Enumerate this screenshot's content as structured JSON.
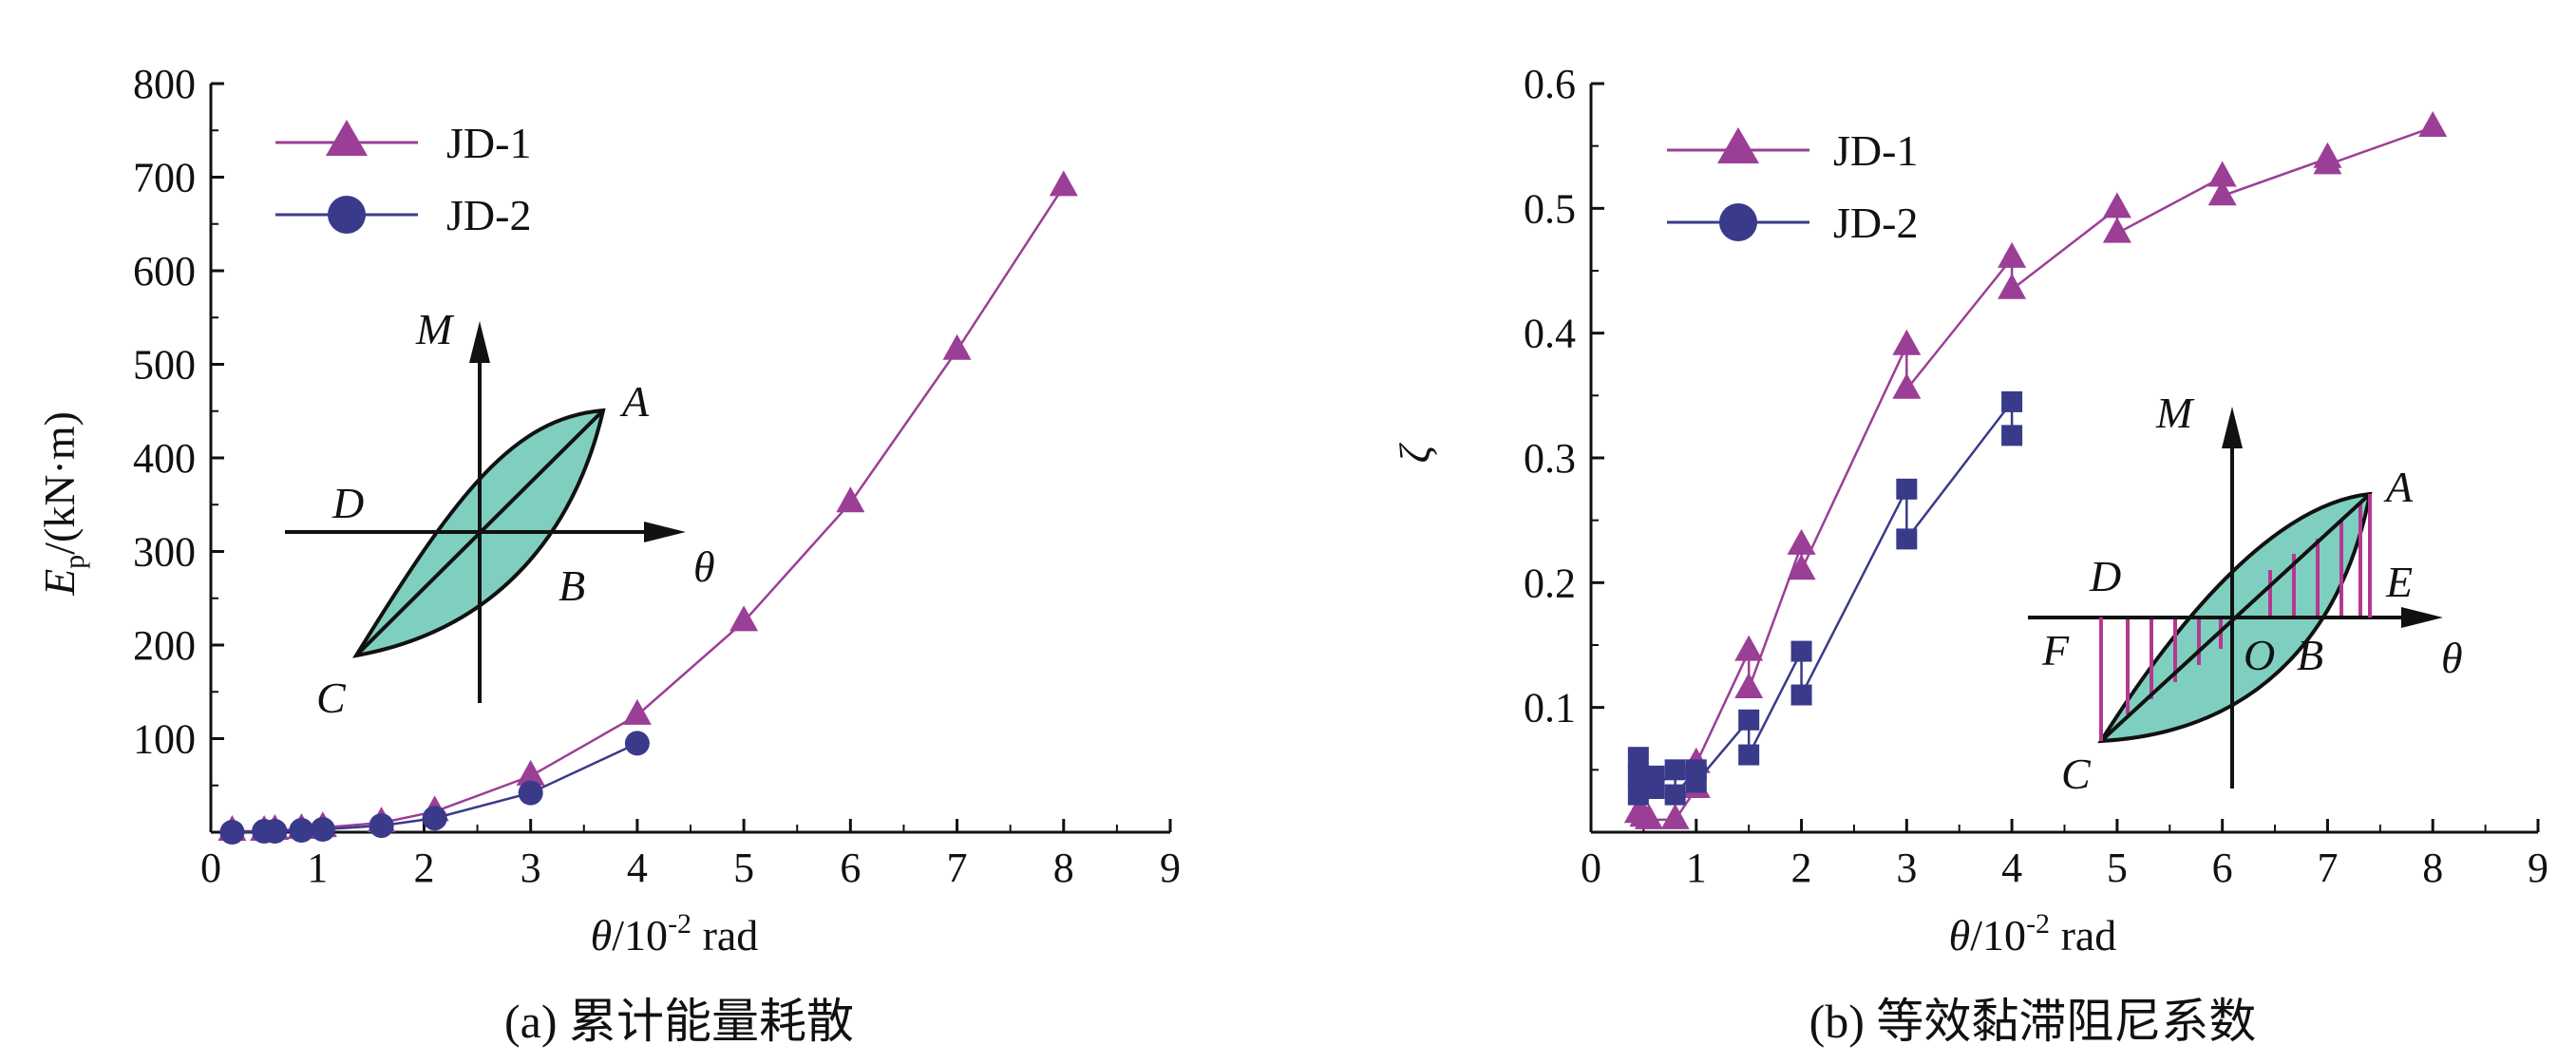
{
  "colors": {
    "jd1": "#9b3e96",
    "jd2": "#3a3a8a",
    "loop_fill": "#7ecfc0",
    "hatch": "#b5388f"
  },
  "chart_data": [
    {
      "type": "line",
      "caption": "(a) 累计能量耗散",
      "xlabel": {
        "sym": "θ",
        "rest": "/10",
        "sup": "-2",
        "unit": " rad"
      },
      "ylabel": {
        "sym": "E",
        "sub": "p",
        "rest": "/(kN·m)"
      },
      "xlim": [
        0,
        9
      ],
      "ylim": [
        0,
        800
      ],
      "xticks": [
        "0",
        "1",
        "2",
        "3",
        "4",
        "5",
        "6",
        "7",
        "8",
        "9"
      ],
      "yticks": [
        "100",
        "200",
        "300",
        "400",
        "500",
        "600",
        "700",
        "800"
      ],
      "legend_position": "top-left",
      "series": [
        {
          "name": "JD-1",
          "marker": "triangle",
          "x": [
            0.2,
            0.5,
            0.6,
            0.85,
            1.05,
            1.6,
            2.1,
            3.0,
            4.0,
            5.0,
            6.0,
            7.0,
            8.0
          ],
          "y": [
            1,
            1,
            2,
            3,
            5,
            10,
            22,
            60,
            125,
            225,
            352,
            515,
            690
          ]
        },
        {
          "name": "JD-2",
          "marker": "circle",
          "x": [
            0.2,
            0.5,
            0.6,
            0.85,
            1.05,
            1.6,
            2.1,
            3.0,
            4.0
          ],
          "y": [
            0,
            1,
            1,
            2,
            3,
            7,
            15,
            42,
            95
          ]
        }
      ],
      "inset": {
        "labels": [
          "M",
          "θ",
          "A",
          "B",
          "C",
          "D"
        ]
      }
    },
    {
      "type": "line",
      "caption": "(b) 等效黏滞阻尼系数",
      "xlabel": {
        "sym": "θ",
        "rest": "/10",
        "sup": "-2",
        "unit": " rad"
      },
      "ylabel": {
        "sym": "ζ"
      },
      "xlim": [
        0,
        9
      ],
      "ylim": [
        0,
        0.6
      ],
      "xticks": [
        "0",
        "1",
        "2",
        "3",
        "4",
        "5",
        "6",
        "7",
        "8",
        "9"
      ],
      "yticks": [
        "0.1",
        "0.2",
        "0.3",
        "0.4",
        "0.5",
        "0.6"
      ],
      "legend_position": "top-left",
      "series": [
        {
          "name": "JD-1",
          "marker": "triangle",
          "x": [
            0.45,
            0.5,
            0.55,
            0.8,
            1.0,
            1.0,
            1.5,
            1.5,
            2.0,
            2.0,
            3.0,
            3.0,
            4.0,
            4.0,
            5.0,
            5.0,
            6.0,
            6.0,
            7.0,
            7.0,
            8.0
          ],
          "y": [
            0.015,
            0.012,
            0.01,
            0.01,
            0.035,
            0.055,
            0.145,
            0.115,
            0.23,
            0.21,
            0.39,
            0.355,
            0.46,
            0.435,
            0.5,
            0.48,
            0.525,
            0.51,
            0.54,
            0.535,
            0.565
          ]
        },
        {
          "name": "JD-2",
          "marker": "square",
          "x": [
            0.45,
            0.45,
            0.45,
            0.6,
            0.6,
            0.8,
            0.8,
            1.0,
            1.0,
            1.5,
            1.5,
            2.0,
            2.0,
            3.0,
            3.0,
            4.0,
            4.0
          ],
          "y": [
            0.06,
            0.045,
            0.03,
            0.045,
            0.035,
            0.05,
            0.03,
            0.05,
            0.04,
            0.09,
            0.062,
            0.145,
            0.11,
            0.275,
            0.235,
            0.345,
            0.318
          ]
        }
      ],
      "legend_marker_jd2": "circle",
      "inset": {
        "labels": [
          "M",
          "θ",
          "A",
          "B",
          "C",
          "D",
          "E",
          "F",
          "O"
        ]
      }
    }
  ]
}
